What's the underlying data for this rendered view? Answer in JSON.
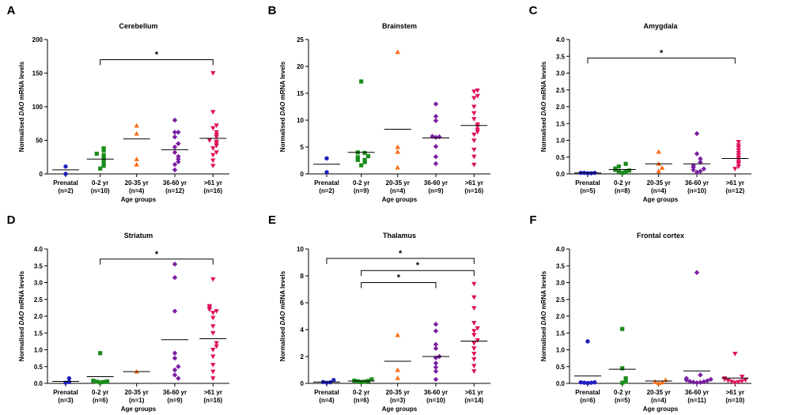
{
  "figure": {
    "group_colors": [
      "#1f1fbf",
      "#1a8c1a",
      "#ff6a13",
      "#7a1fa2",
      "#e0105c"
    ],
    "group_markers": [
      "circle",
      "square",
      "triangle-up",
      "diamond",
      "triangle-down"
    ]
  },
  "chart_data": [
    {
      "type": "scatter",
      "panel": "A",
      "title": "Cerebellum",
      "ylabel_prefix": "Normalised ",
      "ylabel_italic": "DAO",
      "ylabel_suffix": " mRNA levels",
      "xlabel": "Age groups",
      "ylim": [
        0,
        200
      ],
      "yticks": [
        0,
        50,
        100,
        150,
        200
      ],
      "ytick_labels": [
        "0",
        "50",
        "100",
        "150",
        "200"
      ],
      "categories": [
        "Prenatal",
        "0-2 yr",
        "20-35 yr",
        "36-60 yr",
        ">61 yr"
      ],
      "n_labels": [
        "(n=2)",
        "(n=10)",
        "(n=4)",
        "(n=12)",
        "(n=16)"
      ],
      "means": [
        6,
        22,
        52,
        36,
        53
      ],
      "points": [
        [
          11,
          0
        ],
        [
          8,
          12,
          15,
          18,
          22,
          25,
          28,
          30,
          35,
          38
        ],
        [
          14,
          22,
          60,
          72
        ],
        [
          6,
          14,
          18,
          22,
          26,
          32,
          40,
          45,
          55,
          62,
          62,
          80
        ],
        [
          12,
          20,
          28,
          32,
          38,
          42,
          45,
          48,
          50,
          55,
          58,
          62,
          68,
          72,
          92,
          150
        ]
      ],
      "significance": [
        {
          "from": 1,
          "to": 4,
          "label": "*",
          "y": 170
        }
      ]
    },
    {
      "type": "scatter",
      "panel": "B",
      "title": "Brainstem",
      "ylabel_prefix": "Normalised ",
      "ylabel_italic": "DAO",
      "ylabel_suffix": " mRNA levels",
      "xlabel": "Age groups",
      "ylim": [
        0,
        25
      ],
      "yticks": [
        0,
        5,
        10,
        15,
        20,
        25
      ],
      "ytick_labels": [
        "0",
        "5",
        "10",
        "15",
        "20",
        "25"
      ],
      "categories": [
        "Prenatal",
        "0-2 yr",
        "20-35 yr",
        "36-60 yr",
        ">61 yr"
      ],
      "n_labels": [
        "(n=2)",
        "(n=9)",
        "(n=4)",
        "(n=9)",
        "(n=16)"
      ],
      "means": [
        1.8,
        4,
        8.3,
        6.7,
        9
      ],
      "points": [
        [
          2.9,
          0.3
        ],
        [
          1.6,
          2.2,
          2.6,
          2.6,
          3.1,
          3.3,
          3.9,
          4.0,
          17.2
        ],
        [
          1.2,
          4.1,
          5.0,
          22.7
        ],
        [
          1.9,
          3.2,
          5.1,
          6.8,
          6.9,
          7.0,
          9.9,
          10.7,
          13.0
        ],
        [
          1.7,
          3.2,
          4.5,
          6.2,
          7.3,
          7.8,
          8.2,
          8.8,
          9.2,
          10.2,
          11.3,
          12.5,
          14.1,
          14.5,
          15.3,
          15.5
        ]
      ],
      "significance": []
    },
    {
      "type": "scatter",
      "panel": "C",
      "title": "Amygdala",
      "ylabel_prefix": "Normalised ",
      "ylabel_italic": "DAO",
      "ylabel_suffix": " mRNA levels",
      "xlabel": "Age groups",
      "ylim": [
        0,
        4
      ],
      "yticks": [
        0,
        0.5,
        1,
        1.5,
        2,
        2.5,
        3,
        3.5,
        4
      ],
      "ytick_labels": [
        "0.0",
        "0.5",
        "1.0",
        "1.5",
        "2.0",
        "2.5",
        "3.0",
        "3.5",
        "4.0"
      ],
      "categories": [
        "Prenatal",
        "0-2 yr",
        "20-35 yr",
        "36-60 yr",
        ">61 yr"
      ],
      "n_labels": [
        "(n=5)",
        "(n=8)",
        "(n=4)",
        "(n=10)",
        "(n=12)"
      ],
      "means": [
        0.03,
        0.13,
        0.3,
        0.3,
        0.46
      ],
      "points": [
        [
          0.02,
          0.02,
          0.03,
          0.03,
          0.03
        ],
        [
          0.03,
          0.06,
          0.08,
          0.1,
          0.12,
          0.16,
          0.22,
          0.3
        ],
        [
          0.08,
          0.18,
          0.3,
          0.66
        ],
        [
          0.05,
          0.08,
          0.12,
          0.15,
          0.2,
          0.25,
          0.35,
          0.45,
          0.6,
          1.2
        ],
        [
          0.15,
          0.22,
          0.3,
          0.35,
          0.42,
          0.48,
          0.55,
          0.62,
          0.7,
          0.78,
          0.85,
          0.95
        ]
      ],
      "significance": [
        {
          "from": 0,
          "to": 4,
          "label": "*",
          "y": 3.45
        }
      ]
    },
    {
      "type": "scatter",
      "panel": "D",
      "title": "Striatum",
      "ylabel_prefix": "Normalised ",
      "ylabel_italic": "DAO",
      "ylabel_suffix": " mRNA levels",
      "xlabel": "Age groups",
      "ylim": [
        0,
        4
      ],
      "yticks": [
        0,
        0.5,
        1,
        1.5,
        2,
        2.5,
        3,
        3.5,
        4
      ],
      "ytick_labels": [
        "0.0",
        "0.5",
        "1.0",
        "1.5",
        "2.0",
        "2.5",
        "3.0",
        "3.5",
        "4.0"
      ],
      "categories": [
        "Prenatal",
        "0-2 yr",
        "20-35 yr",
        "36-60 yr",
        ">61 yr"
      ],
      "n_labels": [
        "(n=3)",
        "(n=6)",
        "(n=1)",
        "(n=9)",
        "(n=16)"
      ],
      "means": [
        0.06,
        0.2,
        0.35,
        1.3,
        1.33
      ],
      "points": [
        [
          0.02,
          0.04,
          0.15
        ],
        [
          0.03,
          0.04,
          0.05,
          0.06,
          0.08,
          0.9
        ],
        [
          0.35
        ],
        [
          0.25,
          0.4,
          0.5,
          0.75,
          0.9,
          2.15,
          3.15,
          3.55,
          0.15
        ],
        [
          0.15,
          0.35,
          0.55,
          0.8,
          1.0,
          1.1,
          1.2,
          1.5,
          1.7,
          1.95,
          2.1,
          2.15,
          2.2,
          2.25,
          2.3,
          3.1
        ]
      ],
      "significance": [
        {
          "from": 1,
          "to": 4,
          "label": "*",
          "y": 3.7
        }
      ]
    },
    {
      "type": "scatter",
      "panel": "E",
      "title": "Thalamus",
      "ylabel_prefix": "Normalised ",
      "ylabel_italic": "DAO",
      "ylabel_suffix": " mRNA levels",
      "xlabel": "Age groups",
      "ylim": [
        0,
        10
      ],
      "yticks": [
        0,
        2,
        4,
        6,
        8,
        10
      ],
      "ytick_labels": [
        "0",
        "2",
        "4",
        "6",
        "8",
        "10"
      ],
      "categories": [
        "Prenatal",
        "0-2 yr",
        "20-35 yr",
        "36-60 yr",
        ">61 yr"
      ],
      "n_labels": [
        "(n=4)",
        "(n=6)",
        "(n=3)",
        "(n=10)",
        "(n=14)"
      ],
      "means": [
        0.1,
        0.18,
        1.65,
        2.0,
        3.15
      ],
      "points": [
        [
          0.05,
          0.08,
          0.1,
          0.25
        ],
        [
          0.1,
          0.12,
          0.15,
          0.18,
          0.2,
          0.3
        ],
        [
          0.4,
          1.0,
          3.6
        ],
        [
          0.3,
          0.9,
          1.2,
          1.5,
          1.9,
          2.0,
          2.6,
          2.9,
          3.9,
          4.4
        ],
        [
          0.9,
          1.3,
          1.8,
          2.2,
          2.6,
          3.0,
          3.2,
          3.6,
          3.9,
          4.1,
          4.5,
          5.6,
          6.4,
          7.4
        ]
      ],
      "significance": [
        {
          "from": 1,
          "to": 3,
          "label": "*",
          "y": 7.5
        },
        {
          "from": 1,
          "to": 4,
          "label": "*",
          "y": 8.4
        },
        {
          "from": 0,
          "to": 4,
          "label": "*",
          "y": 9.3
        }
      ]
    },
    {
      "type": "scatter",
      "panel": "F",
      "title": "Frontal cortex",
      "ylabel_prefix": "Normalised ",
      "ylabel_italic": "DAO",
      "ylabel_suffix": " mRNA levels",
      "xlabel": "Age groups",
      "ylim": [
        0,
        4
      ],
      "yticks": [
        0,
        0.5,
        1,
        1.5,
        2,
        2.5,
        3,
        3.5,
        4
      ],
      "ytick_labels": [
        "0.0",
        "0.5",
        "1.0",
        "1.5",
        "2.0",
        "2.5",
        "3.0",
        "3.5",
        "4.0"
      ],
      "categories": [
        "Prenatal",
        "0-2 yr",
        "20-35 yr",
        "36-60 yr",
        ">61 yr"
      ],
      "n_labels": [
        "(n=6)",
        "(n=5)",
        "(n=4)",
        "(n=11)",
        "(n=10)"
      ],
      "means": [
        0.22,
        0.42,
        0.07,
        0.37,
        0.16
      ],
      "points": [
        [
          0.01,
          0.02,
          0.02,
          0.03,
          0.03,
          1.25
        ],
        [
          0.02,
          0.05,
          0.15,
          0.45,
          1.62
        ],
        [
          0.01,
          0.03,
          0.05,
          0.1
        ],
        [
          0.02,
          0.03,
          0.04,
          0.05,
          0.06,
          0.08,
          0.1,
          0.12,
          0.15,
          0.25,
          3.3
        ],
        [
          0.02,
          0.04,
          0.05,
          0.06,
          0.08,
          0.1,
          0.12,
          0.15,
          0.2,
          0.88
        ]
      ],
      "significance": []
    }
  ]
}
